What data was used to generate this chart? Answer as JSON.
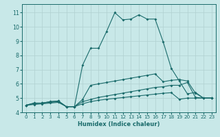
{
  "xlabel": "Humidex (Indice chaleur)",
  "background_color": "#c8e8e8",
  "grid_color": "#b0d0d0",
  "line_color": "#1a6b6b",
  "xlim": [
    -0.5,
    23.5
  ],
  "ylim": [
    4.0,
    11.6
  ],
  "xticks": [
    0,
    1,
    2,
    3,
    4,
    5,
    6,
    7,
    8,
    9,
    10,
    11,
    12,
    13,
    14,
    15,
    16,
    17,
    18,
    19,
    20,
    21,
    22,
    23
  ],
  "yticks": [
    4,
    5,
    6,
    7,
    8,
    9,
    10,
    11
  ],
  "curves": [
    {
      "x": [
        0,
        1,
        2,
        3,
        4,
        5,
        6,
        7,
        8,
        9,
        10,
        11,
        12,
        13,
        14,
        15,
        16,
        17,
        18,
        19,
        20,
        21,
        22,
        23
      ],
      "y": [
        4.5,
        4.65,
        4.65,
        4.75,
        4.8,
        4.4,
        4.4,
        7.3,
        8.5,
        8.5,
        9.7,
        11.0,
        10.5,
        10.55,
        10.85,
        10.55,
        10.55,
        8.95,
        7.1,
        6.2,
        5.3,
        5.4,
        5.0,
        5.0
      ]
    },
    {
      "x": [
        0,
        1,
        2,
        3,
        4,
        5,
        6,
        7,
        8,
        9,
        10,
        11,
        12,
        13,
        14,
        15,
        16,
        17,
        18,
        19,
        20,
        21,
        22,
        23
      ],
      "y": [
        4.5,
        4.65,
        4.65,
        4.75,
        4.8,
        4.4,
        4.4,
        4.9,
        5.9,
        6.0,
        6.1,
        6.2,
        6.3,
        6.4,
        6.5,
        6.6,
        6.7,
        6.15,
        6.25,
        6.3,
        6.2,
        5.35,
        5.0,
        5.0
      ]
    },
    {
      "x": [
        0,
        1,
        2,
        3,
        4,
        5,
        6,
        7,
        8,
        9,
        10,
        11,
        12,
        13,
        14,
        15,
        16,
        17,
        18,
        19,
        20,
        21,
        22,
        23
      ],
      "y": [
        4.5,
        4.6,
        4.65,
        4.7,
        4.75,
        4.4,
        4.4,
        4.75,
        4.9,
        5.05,
        5.15,
        5.25,
        5.35,
        5.45,
        5.55,
        5.65,
        5.75,
        5.8,
        5.9,
        5.9,
        6.1,
        5.05,
        5.0,
        5.0
      ]
    },
    {
      "x": [
        0,
        1,
        2,
        3,
        4,
        5,
        6,
        7,
        8,
        9,
        10,
        11,
        12,
        13,
        14,
        15,
        16,
        17,
        18,
        19,
        20,
        21,
        22,
        23
      ],
      "y": [
        4.5,
        4.55,
        4.6,
        4.65,
        4.7,
        4.4,
        4.4,
        4.6,
        4.75,
        4.85,
        4.92,
        4.98,
        5.04,
        5.1,
        5.16,
        5.22,
        5.28,
        5.34,
        5.38,
        4.92,
        5.0,
        5.0,
        5.0,
        5.0
      ]
    }
  ]
}
